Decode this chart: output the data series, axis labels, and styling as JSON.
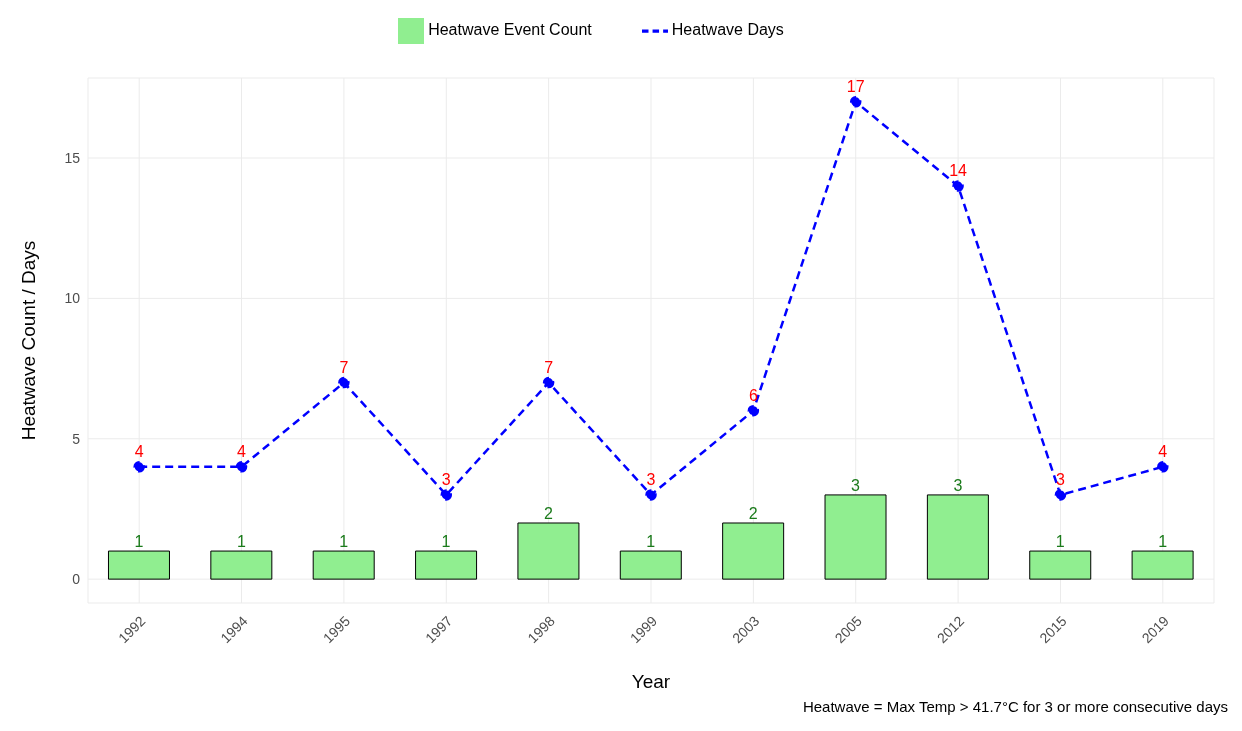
{
  "chart_data": {
    "type": "bar",
    "xlabel": "Year",
    "ylabel": "Heatwave Count / Days",
    "categories": [
      "1992",
      "1994",
      "1995",
      "1997",
      "1998",
      "1999",
      "2003",
      "2005",
      "2012",
      "2015",
      "2019"
    ],
    "series": [
      {
        "name": "Heatwave Event Count",
        "color": "#90ee90",
        "values": [
          1,
          1,
          1,
          1,
          2,
          1,
          2,
          3,
          3,
          1,
          1
        ]
      },
      {
        "name": "Heatwave Days",
        "type": "line",
        "color": "#0000ff",
        "values": [
          4,
          4,
          7,
          3,
          7,
          3,
          6,
          17,
          14,
          3,
          4
        ],
        "marker": "circle",
        "line_style": "dashed"
      }
    ],
    "ylim": [
      -0.85,
      17.85
    ],
    "yticks": [
      0,
      5,
      10,
      15
    ],
    "grid": true,
    "legend": "top",
    "data_labels": true,
    "annotations": [
      "Heatwave = Max Temp > 41.7°C for 3 or more consecutive days"
    ]
  }
}
